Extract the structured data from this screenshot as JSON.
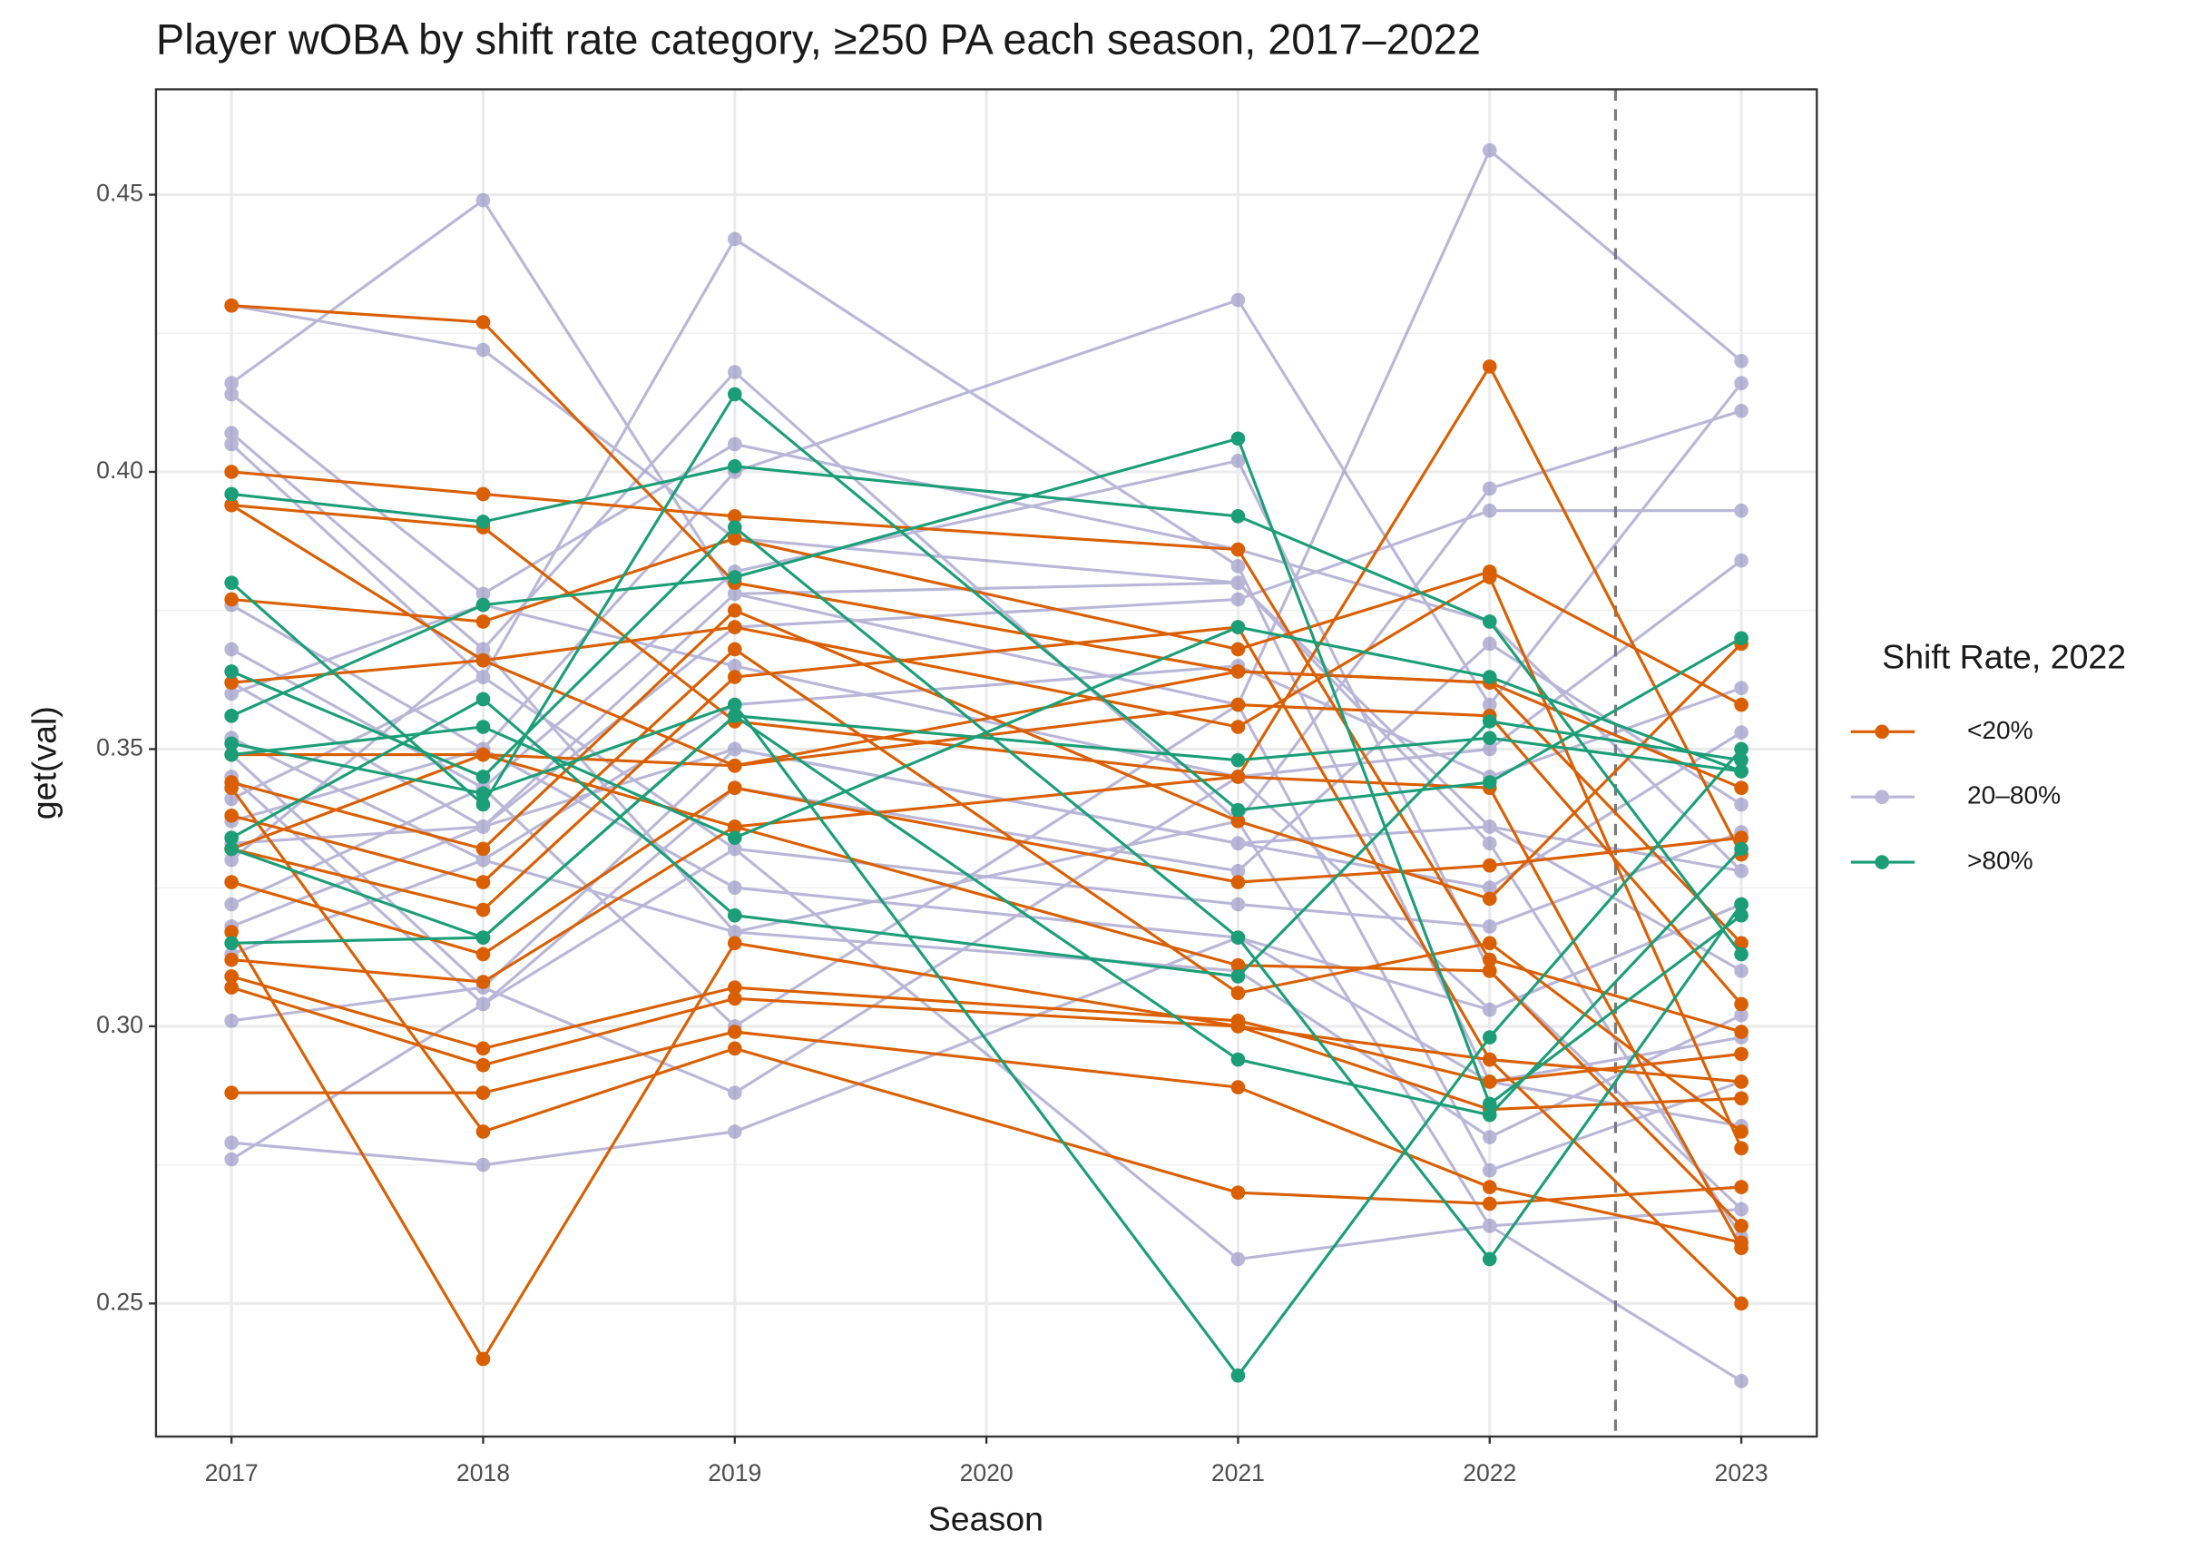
{
  "chart_data": {
    "type": "line",
    "title": "Player wOBA by shift rate category, ≥250 PA each season, 2017–2022",
    "x_label": "Season",
    "y_label": "get(val)",
    "legend_title": "Shift Rate, 2022",
    "legend": "right",
    "grid": true,
    "x": [
      2017,
      2018,
      2019,
      2021,
      2022,
      2023
    ],
    "xlim": [
      2016.7,
      2023.3
    ],
    "xticks": [
      2017,
      2018,
      2019,
      2020,
      2021,
      2022,
      2023
    ],
    "ylim": [
      0.226,
      0.469
    ],
    "yticks": [
      0.25,
      {
        "value": 0.3,
        "label": "0.30"
      },
      0.35,
      {
        "value": 0.4,
        "label": "0.40"
      },
      0.45
    ],
    "yticks_minor": [
      0.275,
      0.325,
      0.375,
      0.425
    ],
    "vline": 2022.5,
    "series": [
      {
        "name": "20–80%",
        "color": "#7570b3",
        "opacity": 0.5,
        "lines": [
          [
            0.43,
            0.422,
            0.388,
            0.38,
            0.336,
            0.31
          ],
          [
            0.416,
            0.449,
            0.378,
            0.358,
            0.458,
            0.42
          ],
          [
            0.414,
            0.378,
            0.405,
            0.386,
            0.373,
            0.328
          ],
          [
            0.407,
            0.368,
            0.418,
            0.337,
            0.397,
            0.411
          ],
          [
            0.405,
            0.363,
            0.442,
            0.383,
            0.29,
            0.282
          ],
          [
            0.376,
            0.35,
            0.4,
            0.431,
            0.358,
            0.416
          ],
          [
            0.368,
            0.343,
            0.382,
            0.402,
            0.31,
            0.267
          ],
          [
            0.362,
            0.336,
            0.372,
            0.377,
            0.393,
            0.393
          ],
          [
            0.36,
            0.376,
            0.365,
            0.345,
            0.35,
            0.384
          ],
          [
            0.352,
            0.33,
            0.358,
            0.365,
            0.345,
            0.361
          ],
          [
            0.349,
            0.307,
            0.35,
            0.333,
            0.325,
            0.353
          ],
          [
            0.345,
            0.304,
            0.343,
            0.328,
            0.369,
            0.34
          ],
          [
            0.341,
            0.363,
            0.332,
            0.322,
            0.318,
            0.335
          ],
          [
            0.337,
            0.35,
            0.325,
            0.316,
            0.303,
            0.322
          ],
          [
            0.33,
            0.368,
            0.317,
            0.31,
            0.28,
            0.302
          ],
          [
            0.322,
            0.343,
            0.3,
            0.358,
            0.274,
            0.29
          ],
          [
            0.318,
            0.336,
            0.378,
            0.38,
            0.333,
            0.262
          ],
          [
            0.313,
            0.33,
            0.317,
            0.337,
            0.264,
            0.236
          ],
          [
            0.301,
            0.307,
            0.288,
            0.345,
            0.303,
            0.322
          ],
          [
            0.279,
            0.275,
            0.281,
            0.316,
            0.29,
            0.298
          ],
          [
            0.276,
            0.304,
            0.332,
            0.258,
            0.264,
            0.267
          ],
          [
            0.333,
            0.336,
            0.35,
            0.333,
            0.336,
            0.328
          ]
        ]
      },
      {
        "name": "<20%",
        "color": "#d95f02",
        "opacity": 1,
        "lines": [
          [
            0.43,
            0.427,
            0.38,
            0.364,
            0.362,
            0.343
          ],
          [
            0.4,
            0.396,
            0.392,
            0.386,
            0.312,
            0.299
          ],
          [
            0.394,
            0.39,
            0.355,
            0.345,
            0.419,
            0.331
          ],
          [
            0.377,
            0.373,
            0.388,
            0.368,
            0.382,
            0.358
          ],
          [
            0.362,
            0.366,
            0.372,
            0.354,
            0.381,
            0.278
          ],
          [
            0.349,
            0.349,
            0.347,
            0.358,
            0.356,
            0.304
          ],
          [
            0.344,
            0.332,
            0.375,
            0.337,
            0.323,
            0.369
          ],
          [
            0.338,
            0.326,
            0.368,
            0.306,
            0.315,
            0.281
          ],
          [
            0.332,
            0.321,
            0.363,
            0.372,
            0.294,
            0.29
          ],
          [
            0.326,
            0.313,
            0.343,
            0.326,
            0.329,
            0.334
          ],
          [
            0.312,
            0.308,
            0.336,
            0.311,
            0.31,
            0.264
          ],
          [
            0.309,
            0.296,
            0.307,
            0.301,
            0.29,
            0.295
          ],
          [
            0.307,
            0.293,
            0.305,
            0.3,
            0.285,
            0.287
          ],
          [
            0.288,
            0.288,
            0.299,
            0.289,
            0.271,
            0.261
          ],
          [
            0.343,
            0.281,
            0.296,
            0.27,
            0.268,
            0.271
          ],
          [
            0.317,
            0.24,
            0.315,
            0.3,
            0.294,
            0.25
          ],
          [
            0.394,
            0.366,
            0.347,
            0.364,
            0.362,
            0.315
          ],
          [
            0.332,
            0.349,
            0.336,
            0.345,
            0.343,
            0.26
          ]
        ]
      },
      {
        "name": ">80%",
        "color": "#1b9e77",
        "opacity": 1,
        "lines": [
          [
            0.396,
            0.391,
            0.401,
            0.392,
            0.373,
            0.313
          ],
          [
            0.38,
            0.34,
            0.414,
            0.339,
            0.344,
            0.37
          ],
          [
            0.364,
            0.345,
            0.39,
            0.316,
            0.258,
            0.322
          ],
          [
            0.356,
            0.376,
            0.381,
            0.406,
            0.286,
            0.32
          ],
          [
            0.351,
            0.342,
            0.358,
            0.237,
            0.298,
            0.35
          ],
          [
            0.349,
            0.354,
            0.334,
            0.372,
            0.363,
            0.346
          ],
          [
            0.334,
            0.359,
            0.32,
            0.309,
            0.355,
            0.348
          ],
          [
            0.332,
            0.316,
            0.356,
            0.294,
            0.284,
            0.332
          ],
          [
            0.315,
            0.316,
            0.356,
            0.348,
            0.352,
            0.346
          ]
        ]
      }
    ]
  }
}
